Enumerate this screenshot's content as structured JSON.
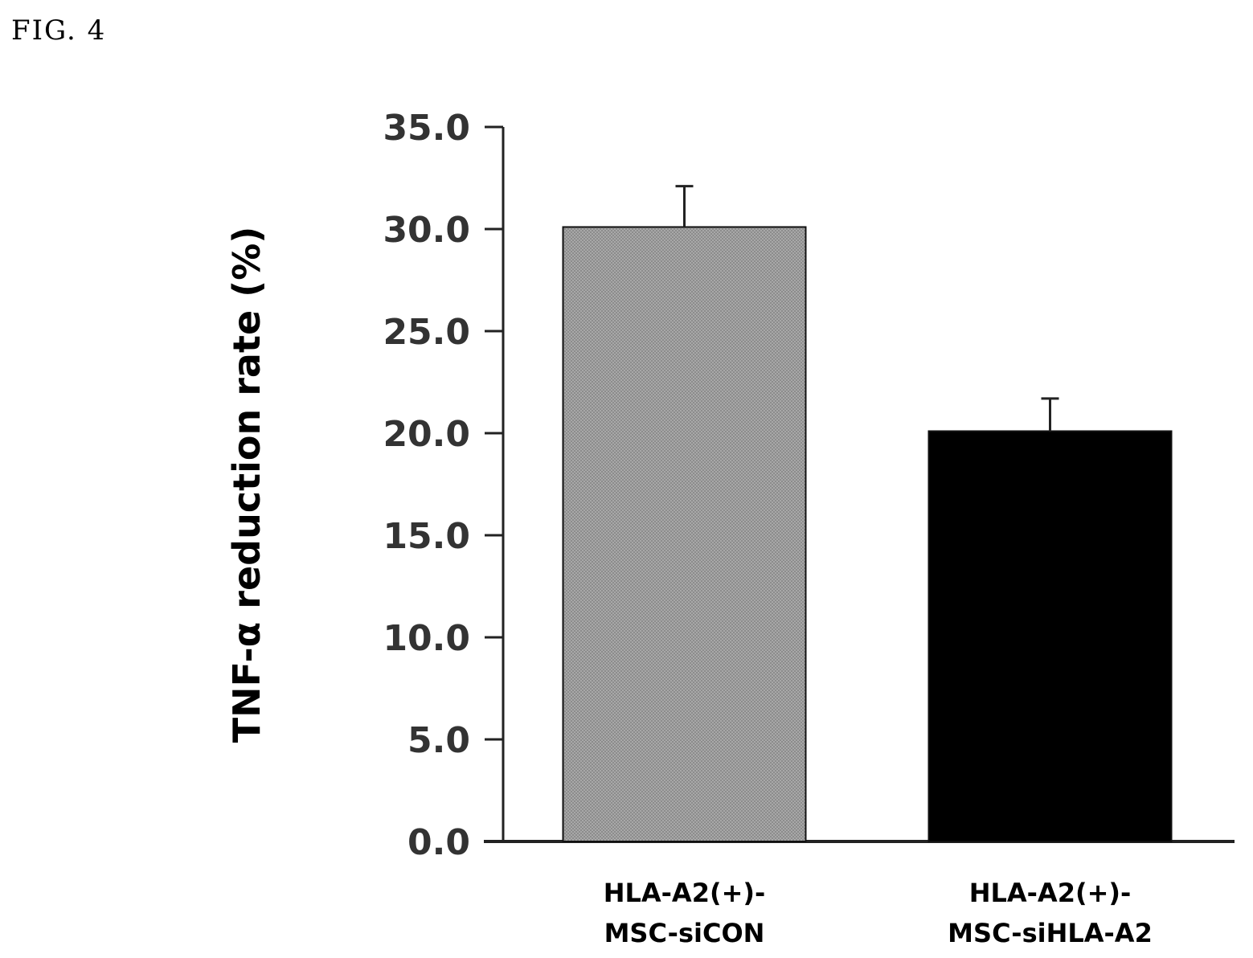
{
  "figure_label": "FIG. 4",
  "chart_data": {
    "type": "bar",
    "title": "",
    "xlabel": "",
    "ylabel": "TNF-α reduction rate (%)",
    "ylim": [
      0,
      35
    ],
    "yticks": [
      "0.0",
      "5.0",
      "10.0",
      "15.0",
      "20.0",
      "25.0",
      "30.0",
      "35.0"
    ],
    "categories": [
      [
        "HLA-A2(+)-",
        "MSC-siCON"
      ],
      [
        "HLA-A2(+)-",
        "MSC-siHLA-A2"
      ]
    ],
    "values": [
      30.1,
      20.1
    ],
    "errors": [
      2.0,
      1.6
    ],
    "colors": [
      "#9a9a9a",
      "#000000"
    ],
    "grid": false,
    "legend": "none"
  }
}
